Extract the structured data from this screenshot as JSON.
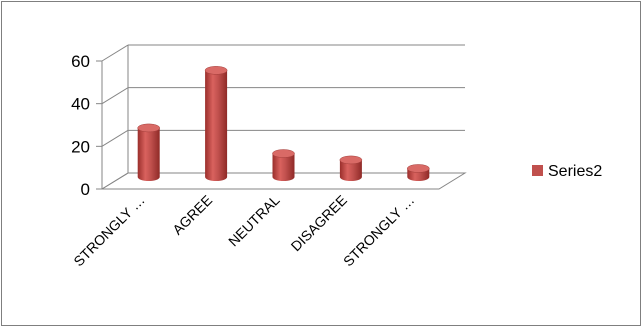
{
  "chart_data": {
    "type": "bar",
    "style": "3d-cylinder",
    "categories": [
      "STRONGLY …",
      "AGREE",
      "NEUTRAL",
      "DISAGREE",
      "STRONGLY …"
    ],
    "series": [
      {
        "name": "Series2",
        "values": [
          23,
          50,
          11,
          8,
          4
        ],
        "color": "#c0504d"
      }
    ],
    "yticks": [
      "0",
      "20",
      "40",
      "60"
    ],
    "ylim": [
      0,
      60
    ],
    "grid": true,
    "legend_position": "right",
    "title": "",
    "xlabel": "",
    "ylabel": ""
  }
}
